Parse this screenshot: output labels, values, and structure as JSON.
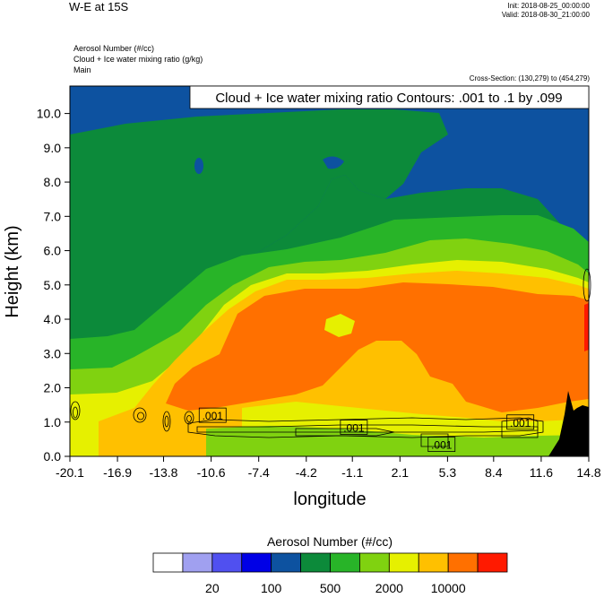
{
  "header": {
    "title": "W-E at 15S",
    "init": "Init: 2018-08-25_00:00:00",
    "valid": "Valid: 2018-08-30_21:00:00",
    "field_lines": [
      "Aerosol Number   (#/cc)",
      "Cloud + Ice water mixing ratio   (g/kg)",
      "Main"
    ],
    "cross_section": "Cross-Section: (130,279) to (454,279)"
  },
  "chart_data": {
    "type": "heatmap",
    "title": "Cloud + Ice water mixing ratio Contours: .001 to .1 by .099",
    "xlabel": "longitude",
    "ylabel": "Height (km)",
    "xlim": [
      -20.1,
      14.8
    ],
    "ylim": [
      0.0,
      10.8
    ],
    "x_ticks": [
      "-20.1",
      "-16.9",
      "-13.8",
      "-10.6",
      "-7.4",
      "-4.2",
      "-1.1",
      "2.1",
      "5.3",
      "8.4",
      "11.6",
      "14.8"
    ],
    "y_ticks": [
      "0.0",
      "1.0",
      "2.0",
      "3.0",
      "4.0",
      "5.0",
      "6.0",
      "7.0",
      "8.0",
      "9.0",
      "10.0"
    ],
    "contour_labels": [
      {
        "text": ".001",
        "lon": -10.5,
        "height": 1.2
      },
      {
        "text": ".001",
        "lon": -1.0,
        "height": 0.85
      },
      {
        "text": ".001",
        "lon": 4.9,
        "height": 0.35
      },
      {
        "text": ".001",
        "lon": 10.2,
        "height": 1.0
      }
    ],
    "colorbar": {
      "title": "Aerosol Number  (#/cc)",
      "colors": [
        "#ffffff",
        "#a0a0f0",
        "#5050f0",
        "#0000e6",
        "#0d52a0",
        "#0c8a3a",
        "#28b428",
        "#80d210",
        "#e6f000",
        "#ffc000",
        "#ff7000",
        "#ff1a00"
      ],
      "tick_labels": [
        "20",
        "100",
        "500",
        "2000",
        "10000"
      ]
    }
  }
}
